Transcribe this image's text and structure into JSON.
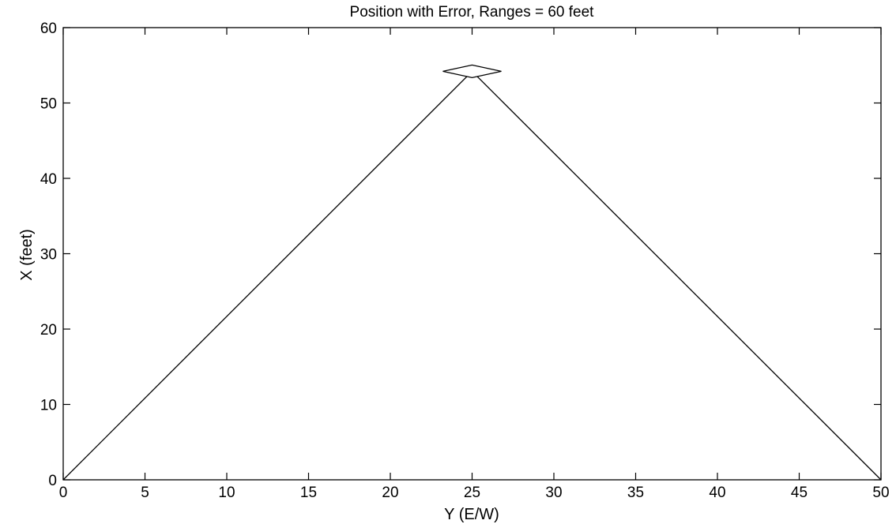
{
  "chart_data": {
    "type": "line",
    "title": "Position with Error, Ranges = 60 feet",
    "xlabel": "Y (E/W)",
    "ylabel": "X (feet)",
    "xlim": [
      0,
      50
    ],
    "ylim": [
      0,
      60
    ],
    "x_ticks": [
      0,
      5,
      10,
      15,
      20,
      25,
      30,
      35,
      40,
      45,
      50
    ],
    "y_ticks": [
      0,
      10,
      20,
      30,
      40,
      50,
      60
    ],
    "grid": false,
    "series": [
      {
        "x": [
          0,
          25,
          50
        ],
        "y": [
          0,
          54.2,
          0
        ]
      }
    ],
    "marker": {
      "shape": "diamond",
      "x": 25,
      "y": 54.2
    }
  }
}
